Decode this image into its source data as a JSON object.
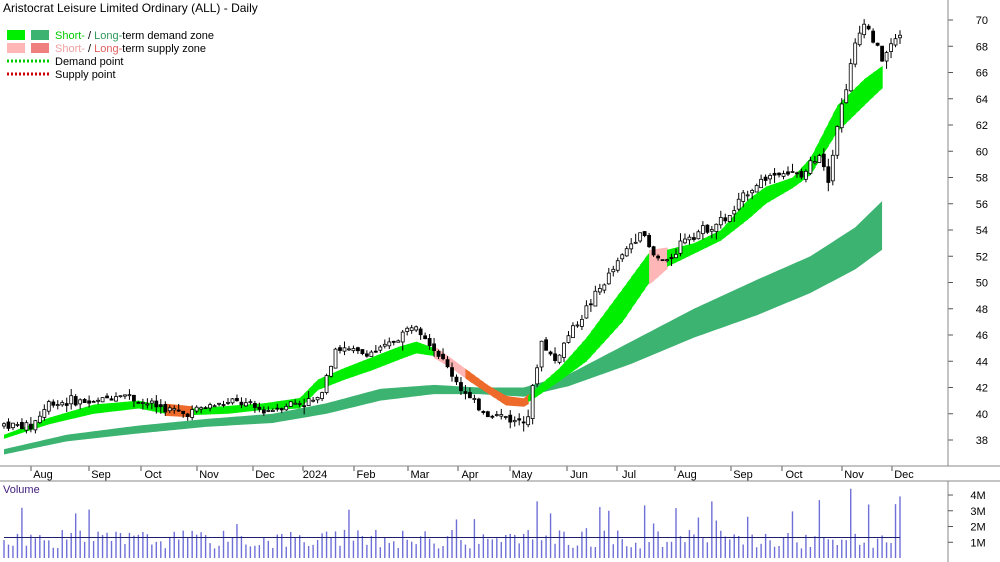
{
  "chart_data": {
    "type": "candlestick",
    "title": "Aristocrat Leisure Limited Ordinary (ALL) - Daily",
    "x_tick_labels": [
      "Aug",
      "Sep",
      "Oct",
      "Nov",
      "Dec",
      "2024",
      "Feb",
      "Mar",
      "Apr",
      "May",
      "Jun",
      "Jul",
      "Aug",
      "Sep",
      "Oct",
      "Nov",
      "Dec"
    ],
    "y_ticks": [
      38,
      40,
      42,
      44,
      46,
      48,
      50,
      52,
      54,
      56,
      58,
      60,
      62,
      64,
      66,
      68,
      70
    ],
    "ylim": [
      35.5,
      71.5
    ],
    "legend": {
      "demand_zone": {
        "short": "Short-",
        "sep": " / ",
        "long": "Long-",
        "rest": "term demand zone"
      },
      "supply_zone": {
        "short": "Short-",
        "sep": " / ",
        "long": "Long-",
        "rest": "term supply zone"
      },
      "demand_point": "Demand point",
      "supply_point": "Supply point"
    },
    "colors": {
      "short_demand": "#00ee00",
      "long_demand": "#3cb371",
      "short_supply": "#ffb6b6",
      "long_supply": "#f08080",
      "overlap_supply": "#ee6a2a",
      "demand_point": "#00cc00",
      "supply_point": "#cc0000",
      "candle": "#000000",
      "volume_bar": "#6f6fd8",
      "volume_avg": "#1e1e6e"
    },
    "price_path": [
      [
        0,
        39.2
      ],
      [
        6,
        39.0
      ],
      [
        10,
        40.8
      ],
      [
        16,
        41.0
      ],
      [
        20,
        40.8
      ],
      [
        26,
        41.6
      ],
      [
        30,
        41.0
      ],
      [
        36,
        40.4
      ],
      [
        40,
        40.0
      ],
      [
        46,
        40.6
      ],
      [
        52,
        40.9
      ],
      [
        58,
        40.2
      ],
      [
        64,
        40.8
      ],
      [
        70,
        41.0
      ],
      [
        74,
        45.0
      ],
      [
        80,
        44.6
      ],
      [
        84,
        44.8
      ],
      [
        88,
        45.8
      ],
      [
        92,
        47.0
      ],
      [
        96,
        45.0
      ],
      [
        100,
        43.0
      ],
      [
        104,
        41.0
      ],
      [
        108,
        40.0
      ],
      [
        112,
        39.8
      ],
      [
        114,
        39.4
      ],
      [
        117,
        40.0
      ],
      [
        120,
        45.5
      ],
      [
        123,
        44.0
      ],
      [
        126,
        46.0
      ],
      [
        130,
        48.0
      ],
      [
        134,
        50.0
      ],
      [
        138,
        52.0
      ],
      [
        142,
        54.0
      ],
      [
        145,
        52.0
      ],
      [
        148,
        51.5
      ],
      [
        152,
        53.5
      ],
      [
        156,
        54.0
      ],
      [
        162,
        55.0
      ],
      [
        166,
        57.0
      ],
      [
        170,
        58.0
      ],
      [
        174,
        58.5
      ],
      [
        178,
        58.0
      ],
      [
        182,
        60.0
      ],
      [
        184,
        58.0
      ],
      [
        186,
        62.0
      ],
      [
        188,
        65.0
      ],
      [
        190,
        68.0
      ],
      [
        192,
        70.0
      ],
      [
        194,
        68.5
      ],
      [
        196,
        67.0
      ],
      [
        200,
        69.0
      ]
    ],
    "short_zone": [
      [
        0,
        38.1,
        38.4
      ],
      [
        10,
        39.2,
        39.7
      ],
      [
        20,
        40.0,
        40.7
      ],
      [
        30,
        40.4,
        41.0
      ],
      [
        36,
        40.0,
        40.6
      ],
      [
        42,
        39.9,
        40.4
      ],
      [
        50,
        40.0,
        40.6
      ],
      [
        58,
        40.3,
        40.8
      ],
      [
        66,
        40.4,
        41.2
      ],
      [
        70,
        41.8,
        42.6
      ],
      [
        76,
        42.6,
        43.5
      ],
      [
        82,
        43.3,
        44.3
      ],
      [
        88,
        44.1,
        45.1
      ],
      [
        92,
        44.6,
        45.5
      ],
      [
        96,
        44.4,
        45.0
      ],
      [
        100,
        43.6,
        44.0
      ],
      [
        104,
        42.6,
        43.0
      ],
      [
        108,
        41.7,
        42.0
      ],
      [
        112,
        40.8,
        41.2
      ],
      [
        116,
        40.7,
        41.0
      ],
      [
        118,
        41.1,
        41.7
      ],
      [
        124,
        42.5,
        43.5
      ],
      [
        130,
        44.0,
        45.8
      ],
      [
        138,
        47.0,
        49.5
      ],
      [
        144,
        50.0,
        52.3
      ],
      [
        148,
        51.2,
        52.5
      ],
      [
        154,
        52.2,
        53.0
      ],
      [
        160,
        53.2,
        54.0
      ],
      [
        166,
        54.8,
        56.3
      ],
      [
        170,
        56.0,
        57.3
      ],
      [
        176,
        57.2,
        58.0
      ],
      [
        180,
        58.2,
        59.5
      ],
      [
        186,
        61.5,
        63.5
      ],
      [
        192,
        63.5,
        65.5
      ],
      [
        196,
        64.8,
        66.5
      ]
    ],
    "short_zone_supply_ranges": [
      [
        36,
        42
      ],
      [
        96,
        117
      ],
      [
        144,
        148
      ]
    ],
    "long_zone": [
      [
        0,
        36.9,
        37.3
      ],
      [
        14,
        37.9,
        38.4
      ],
      [
        30,
        38.5,
        39.1
      ],
      [
        45,
        39.0,
        39.6
      ],
      [
        60,
        39.3,
        40.0
      ],
      [
        72,
        40.0,
        40.8
      ],
      [
        84,
        41.0,
        41.9
      ],
      [
        96,
        41.5,
        42.2
      ],
      [
        106,
        41.5,
        42.0
      ],
      [
        116,
        41.3,
        42.0
      ],
      [
        126,
        42.1,
        43.0
      ],
      [
        140,
        43.8,
        45.5
      ],
      [
        154,
        45.8,
        48.0
      ],
      [
        168,
        47.5,
        50.2
      ],
      [
        180,
        49.2,
        52.0
      ],
      [
        190,
        51.0,
        54.2
      ],
      [
        196,
        52.5,
        56.2
      ]
    ],
    "volume": {
      "title": "Volume",
      "y_tick_labels": [
        "1M",
        "2M",
        "3M",
        "4M"
      ],
      "ylim": [
        0,
        4.7
      ],
      "avg": 1.3
    }
  }
}
